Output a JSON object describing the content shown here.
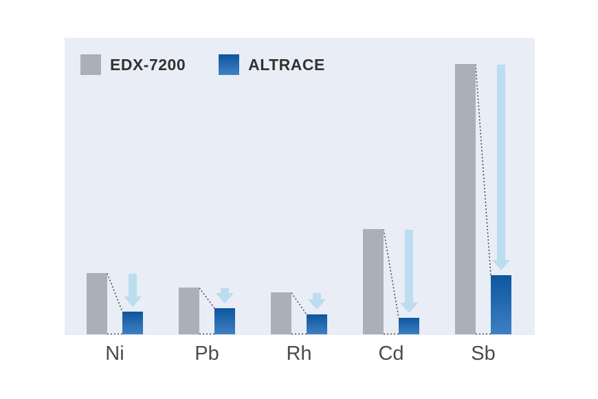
{
  "legend": {
    "series": [
      {
        "label": "EDX-7200"
      },
      {
        "label": "ALTRACE"
      }
    ]
  },
  "chart_data": {
    "type": "bar",
    "title": "",
    "xlabel": "",
    "ylabel": "",
    "categories": [
      "Ni",
      "Pb",
      "Rh",
      "Cd",
      "Sb"
    ],
    "series": [
      {
        "name": "EDX-7200",
        "values": [
          89,
          68,
          61,
          153,
          393
        ]
      },
      {
        "name": "ALTRACE",
        "values": [
          33,
          38,
          29,
          24,
          86
        ]
      }
    ],
    "value_unit": "relative bar height in pixels (no numeric value axis shown)",
    "ylim": [
      0,
      400
    ],
    "grid": false,
    "legend_position": "top-left inside plot",
    "annotations": "each group has a light-blue downward arrow and a dotted connector from the EDX-7200 bar top to the ALTRACE bar top, plus a dotted baseline segment between the bars, indicating a reduction"
  },
  "colors": {
    "page_bg": "#ffffff",
    "panel_bg": "#e9edf6",
    "edx_bar": "#aab0b8",
    "altrace_bar_top": "#0d569e",
    "altrace_bar_bottom": "#3f80c4",
    "arrow": "#bcdcef",
    "dash": "#4a4a4a",
    "legend_text": "#323232",
    "category_text": "#4a4a4a"
  }
}
